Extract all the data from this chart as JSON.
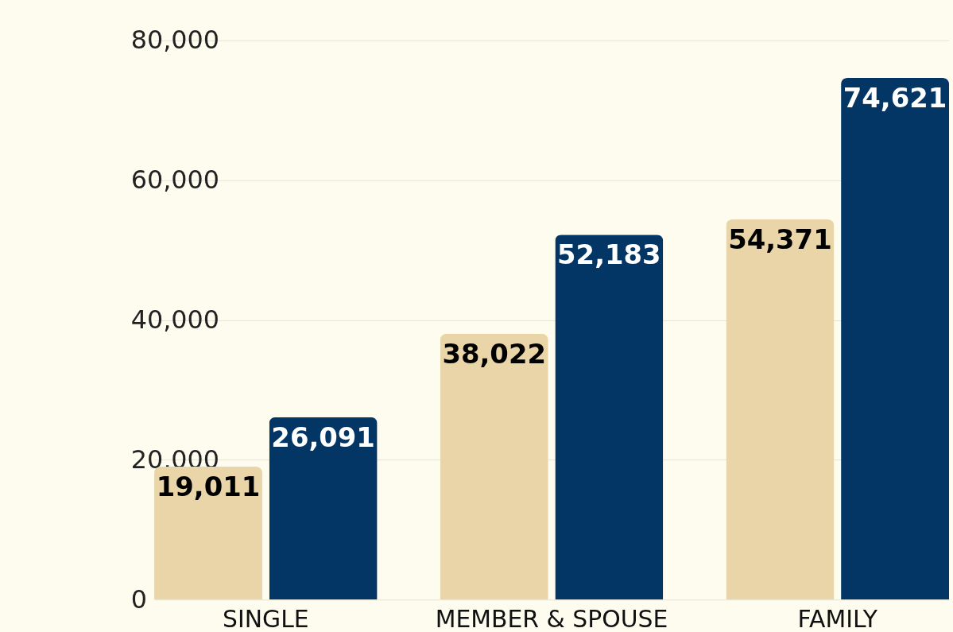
{
  "chart_data": {
    "type": "bar",
    "categories": [
      "SINGLE",
      "MEMBER & SPOUSE",
      "FAMILY"
    ],
    "series": [
      {
        "color": "#e9d5a8",
        "values": [
          19011,
          38022,
          54371
        ],
        "value_labels": [
          "19,011",
          "38,022",
          "54,371"
        ]
      },
      {
        "color": "#033565",
        "values": [
          26091,
          52183,
          74621
        ],
        "value_labels": [
          "26,091",
          "52,183",
          "74,621"
        ]
      }
    ],
    "ylim": [
      0,
      80000
    ],
    "yticks": [
      0,
      {
        "value": 20000,
        "label": "20,000"
      },
      {
        "value": 40000,
        "label": "40,000"
      },
      {
        "value": 60000,
        "label": "60,000"
      },
      {
        "value": 80000,
        "label": "80,000"
      }
    ],
    "grid": "y",
    "legend": false
  }
}
